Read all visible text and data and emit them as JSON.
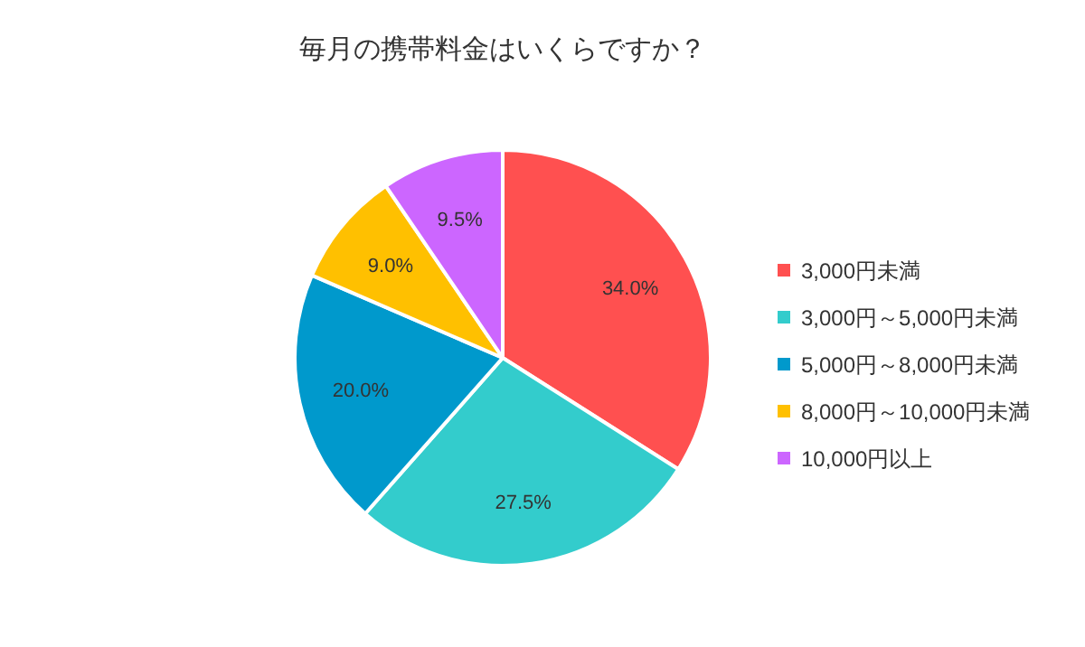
{
  "chart_data": {
    "type": "pie",
    "title": "毎月の携帯料金はいくらですか？",
    "categories": [
      "3,000円未満",
      "3,000円～5,000円未満",
      "5,000円～8,000円未満",
      "8,000円～10,000円未満",
      "10,000円以上"
    ],
    "values": [
      34.0,
      27.5,
      20.0,
      9.0,
      9.5
    ],
    "colors": [
      "#ff5050",
      "#33cccc",
      "#0099cc",
      "#ffc000",
      "#cc66ff"
    ],
    "value_labels": [
      "34.0%",
      "27.5%",
      "20.0%",
      "9.0%",
      "9.5%"
    ],
    "legend": "right"
  }
}
